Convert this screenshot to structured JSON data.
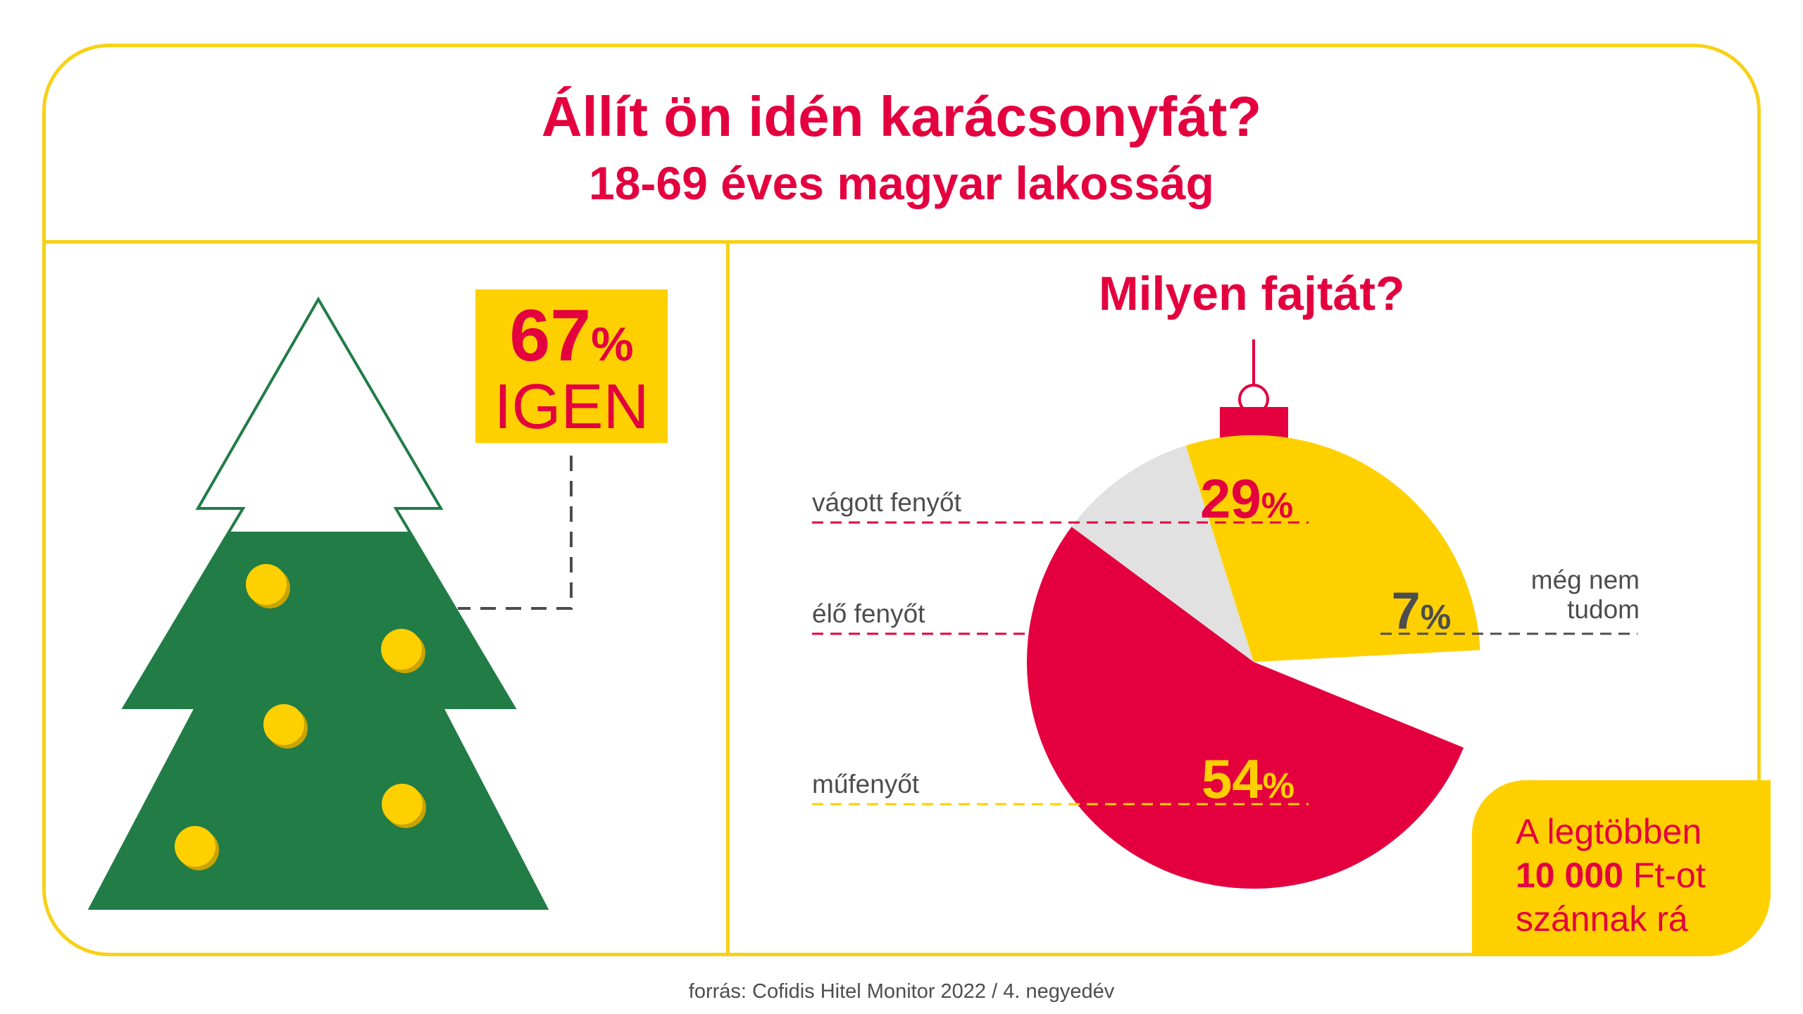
{
  "title": "Állít ön idén karácsonyfát?",
  "subtitle": "18-69 éves magyar lakosság",
  "left_stat": {
    "value": "67",
    "unit": "%",
    "label": "IGEN"
  },
  "chart_data": {
    "type": "pie",
    "title": "Milyen fajtát?",
    "categories": [
      "vágott fenyőt",
      "élő fenyőt",
      "műfenyőt",
      "még nem tudom"
    ],
    "values": [
      29,
      10,
      54,
      7
    ],
    "unit": "%",
    "colors": [
      "#ffd000",
      "#e1e1e1",
      "#e4003f",
      "#ffffff"
    ],
    "label_colors": [
      "#e4003f",
      "#e4003f",
      "#ffd000",
      "#4d4d4d"
    ],
    "legend": "lines to labels on left and right"
  },
  "labels": {
    "cut": "vágott fenyőt",
    "live": "élő fenyőt",
    "artificial": "műfenyőt",
    "unknown_line1": "még nem",
    "unknown_line2": "tudom"
  },
  "callout": {
    "line1": "A legtöbben",
    "line2_bold": "10 000",
    "line2_rest": " Ft-ot",
    "line3": "szánnak rá"
  },
  "source": "forrás: Cofidis Hitel Monitor 2022 / 4. negyedév",
  "colors": {
    "yellow": "#ffd000",
    "frame": "#f7d117",
    "red": "#e4003f",
    "green": "#217c46",
    "gray": "#4d4d4d"
  }
}
